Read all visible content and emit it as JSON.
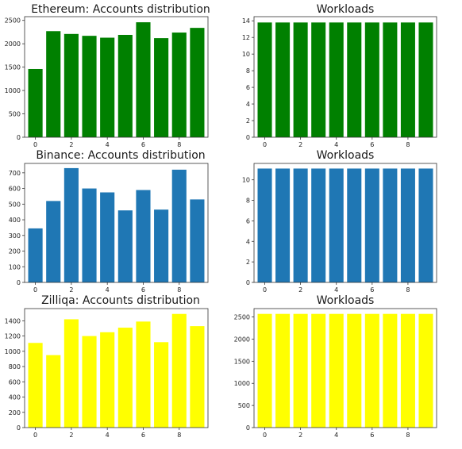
{
  "chart_data": [
    {
      "type": "bar",
      "title": "Ethereum: Accounts distribution",
      "color": "#008000",
      "categories": [
        0,
        1,
        2,
        3,
        4,
        5,
        6,
        7,
        8,
        9
      ],
      "values": [
        1460,
        2270,
        2210,
        2170,
        2130,
        2190,
        2460,
        2120,
        2240,
        2340
      ],
      "ylim": [
        0,
        2580
      ],
      "yticks": [
        0,
        500,
        1000,
        1500,
        2000,
        2500
      ],
      "xticks": [
        0,
        2,
        4,
        6,
        8
      ]
    },
    {
      "type": "bar",
      "title": "Workloads",
      "color": "#008000",
      "categories": [
        0,
        1,
        2,
        3,
        4,
        5,
        6,
        7,
        8,
        9
      ],
      "values": [
        13.8,
        13.8,
        13.8,
        13.8,
        13.8,
        13.8,
        13.8,
        13.8,
        13.8,
        13.8
      ],
      "ylim": [
        0,
        14.5
      ],
      "yticks": [
        0,
        2,
        4,
        6,
        8,
        10,
        12,
        14
      ],
      "xticks": [
        0,
        2,
        4,
        6,
        8
      ]
    },
    {
      "type": "bar",
      "title": "Binance: Accounts distribution",
      "color": "#1f77b4",
      "categories": [
        0,
        1,
        2,
        3,
        4,
        5,
        6,
        7,
        8,
        9
      ],
      "values": [
        345,
        520,
        730,
        600,
        575,
        460,
        590,
        465,
        720,
        530
      ],
      "ylim": [
        0,
        760
      ],
      "yticks": [
        0,
        100,
        200,
        300,
        400,
        500,
        600,
        700
      ],
      "xticks": [
        0,
        2,
        4,
        6,
        8
      ]
    },
    {
      "type": "bar",
      "title": "Workloads",
      "color": "#1f77b4",
      "categories": [
        0,
        1,
        2,
        3,
        4,
        5,
        6,
        7,
        8,
        9
      ],
      "values": [
        11.1,
        11.1,
        11.1,
        11.1,
        11.1,
        11.1,
        11.1,
        11.1,
        11.1,
        11.1
      ],
      "ylim": [
        0,
        11.6
      ],
      "yticks": [
        0,
        2,
        4,
        6,
        8,
        10
      ],
      "xticks": [
        0,
        2,
        4,
        6,
        8
      ]
    },
    {
      "type": "bar",
      "title": "Zilliqa: Accounts distribution",
      "color": "#ffff00",
      "categories": [
        0,
        1,
        2,
        3,
        4,
        5,
        6,
        7,
        8,
        9
      ],
      "values": [
        1110,
        950,
        1420,
        1200,
        1250,
        1310,
        1390,
        1120,
        1490,
        1330
      ],
      "ylim": [
        0,
        1560
      ],
      "yticks": [
        0,
        200,
        400,
        600,
        800,
        1000,
        1200,
        1400
      ],
      "xticks": [
        0,
        2,
        4,
        6,
        8
      ]
    },
    {
      "type": "bar",
      "title": "Workloads",
      "color": "#ffff00",
      "categories": [
        0,
        1,
        2,
        3,
        4,
        5,
        6,
        7,
        8,
        9
      ],
      "values": [
        2570,
        2570,
        2570,
        2570,
        2570,
        2570,
        2570,
        2570,
        2570,
        2570
      ],
      "ylim": [
        0,
        2690
      ],
      "yticks": [
        0,
        500,
        1000,
        1500,
        2000,
        2500
      ],
      "xticks": [
        0,
        2,
        4,
        6,
        8
      ]
    }
  ]
}
